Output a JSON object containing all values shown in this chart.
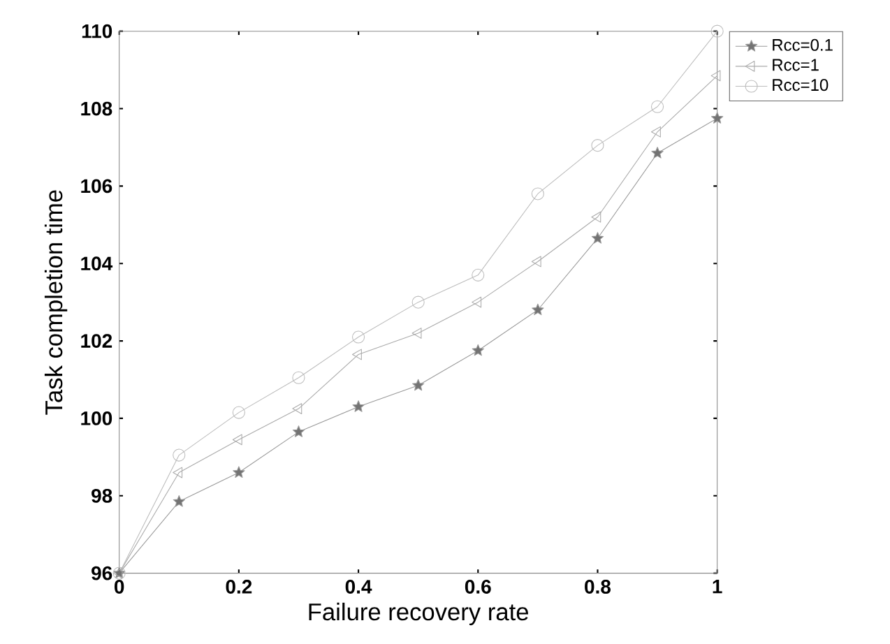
{
  "chart_data": {
    "type": "line",
    "xlabel": "Failure recovery rate",
    "ylabel": "Task completion time",
    "x": [
      0,
      0.1,
      0.2,
      0.3,
      0.4,
      0.5,
      0.6,
      0.7,
      0.8,
      0.9,
      1
    ],
    "series": [
      {
        "name": "Rcc=0.1",
        "color": "#999999",
        "marker": "star",
        "values": [
          96,
          97.85,
          98.6,
          99.65,
          100.3,
          100.85,
          101.75,
          102.8,
          104.65,
          106.85,
          107.75
        ]
      },
      {
        "name": "Rcc=1",
        "color": "#aaaaaa",
        "marker": "triangle",
        "values": [
          96,
          98.6,
          99.45,
          100.25,
          101.65,
          102.2,
          103,
          104.05,
          105.2,
          107.4,
          108.85
        ]
      },
      {
        "name": "Rcc=10",
        "color": "#bcbcbc",
        "marker": "circle",
        "values": [
          96,
          99.05,
          100.15,
          101.05,
          102.1,
          103,
          103.7,
          105.8,
          107.05,
          108.05,
          110
        ]
      }
    ],
    "xlim": [
      0,
      1
    ],
    "ylim": [
      96,
      110
    ],
    "xticks": [
      0,
      0.2,
      0.4,
      0.6,
      0.8,
      1
    ],
    "yticks": [
      96,
      98,
      100,
      102,
      104,
      106,
      108,
      110
    ],
    "grid": false,
    "legend": "top right",
    "line_style": "solid"
  }
}
